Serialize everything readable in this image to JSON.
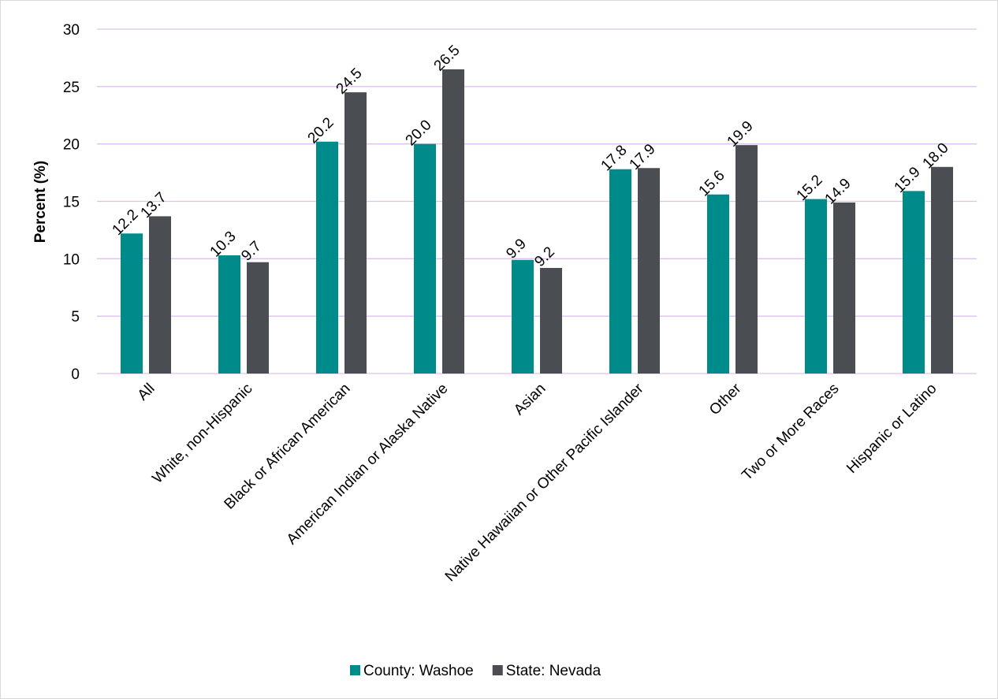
{
  "chart_data": {
    "type": "bar",
    "title": "",
    "xlabel": "",
    "ylabel": "Percent (%)",
    "ylim": [
      0,
      30
    ],
    "yticks": [
      0,
      5,
      10,
      15,
      20,
      25,
      30
    ],
    "grid": true,
    "legend_position": "bottom",
    "categories": [
      "All",
      "White, non-Hispanic",
      "Black or African American",
      "American Indian or Alaska Native",
      "Asian",
      "Native Hawaiian or Other Pacific Islander",
      "Other",
      "Two or More Races",
      "Hispanic or Latino"
    ],
    "series": [
      {
        "name": "County: Washoe",
        "color": "#008b8b",
        "values": [
          12.2,
          10.3,
          20.2,
          20.0,
          9.9,
          17.8,
          15.6,
          15.2,
          15.9
        ],
        "labels": [
          "12.2",
          "10.3",
          "20.2",
          "20.0",
          "9.9",
          "17.8",
          "15.6",
          "15.2",
          "15.9"
        ]
      },
      {
        "name": "State: Nevada",
        "color": "#4a4d52",
        "values": [
          13.7,
          9.7,
          24.5,
          26.5,
          9.2,
          17.9,
          19.9,
          14.9,
          18.0
        ],
        "labels": [
          "13.7",
          "9.7",
          "24.5",
          "26.5",
          "9.2",
          "17.9",
          "19.9",
          "14.9",
          "18.0"
        ]
      }
    ],
    "gridline_color": "#dcc2ec"
  }
}
